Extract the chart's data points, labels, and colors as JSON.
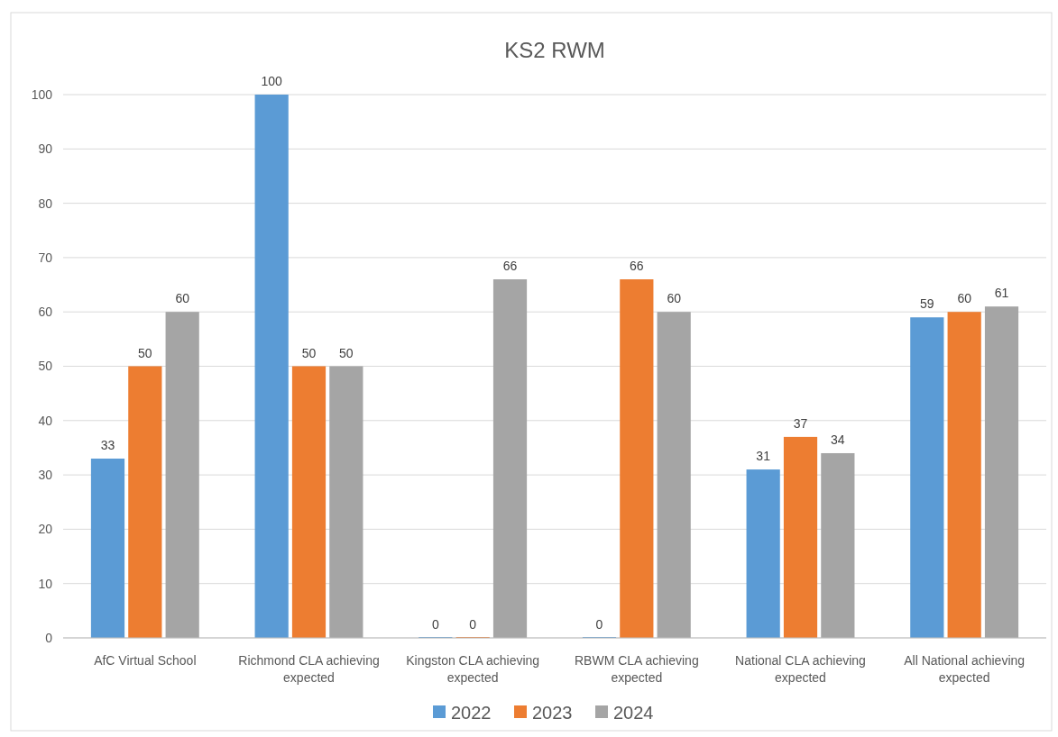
{
  "chart_data": {
    "type": "bar",
    "title": "KS2 RWM",
    "categories": [
      "AfC Virtual School",
      "Richmond CLA achieving expected",
      "Kingston CLA achieving expected",
      "RBWM CLA achieving expected",
      "National CLA achieving expected",
      "All National achieving expected"
    ],
    "series": [
      {
        "name": "2022",
        "color": "#5b9bd5",
        "values": [
          33,
          100,
          0,
          0,
          31,
          59
        ]
      },
      {
        "name": "2023",
        "color": "#ed7d31",
        "values": [
          50,
          50,
          0,
          66,
          37,
          60
        ]
      },
      {
        "name": "2024",
        "color": "#a5a5a5",
        "values": [
          60,
          50,
          66,
          60,
          34,
          61
        ]
      }
    ],
    "ylim": [
      0,
      100
    ],
    "yticks": [
      0,
      10,
      20,
      30,
      40,
      50,
      60,
      70,
      80,
      90,
      100
    ],
    "grid": "y",
    "legend": "bottom",
    "data_labels": true
  }
}
